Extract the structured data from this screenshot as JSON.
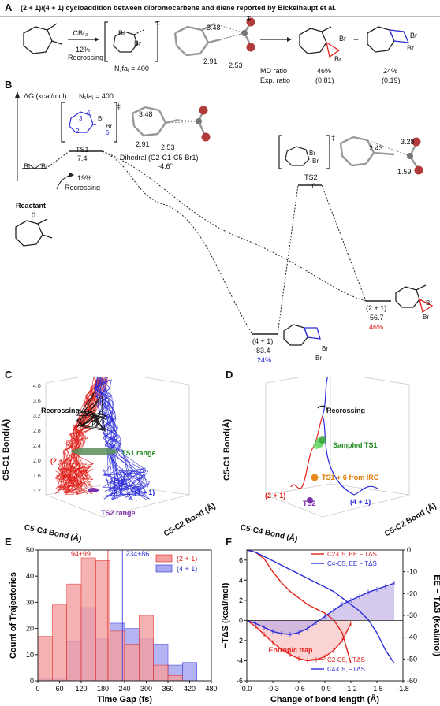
{
  "panel_a": {
    "label": "A",
    "title": "(2 + 1)/(4 + 1) cycloaddition between dibromocarbene  and diene reported  by Bickelhaupt et al.",
    "reagent": ":CBr₂",
    "recross_pct": "12%",
    "recross_label": "Recrossing",
    "nfaj": "N₁faⱼ = 400",
    "dist_348": "3.48",
    "dist_291": "2.91",
    "dist_253": "2.53",
    "md_ratio_label": "MD ratio",
    "exp_ratio_label": "Exp. ratio",
    "md_21": "46%",
    "md_41": "24%",
    "exp_21": "(0.81)",
    "exp_41": "(0.19)",
    "br": "Br",
    "dagger": "‡",
    "plus": "+"
  },
  "panel_b": {
    "label": "B",
    "yaxis": "ΔG (kcal/mol)",
    "nfaj": "N₁faⱼ = 400",
    "ts1_label": "TS1",
    "ts1_val": "7.4",
    "ts1_pct": "19%",
    "ts1_recross": "Recrossing",
    "ts2_label": "TS2",
    "ts2_val": "1.0",
    "reactant_label": "Reactant",
    "reactant_val": "0",
    "p41_label": "(4 + 1)",
    "p41_val": "-83.4",
    "p41_pct": "24%",
    "p21_label": "(2 + 1)",
    "p21_val": "-56.7",
    "p21_pct": "46%",
    "dihedral": "Dihedral (C2-C1-C5-Br1)",
    "dihedral_val": "-4.6°",
    "d348": "3.48",
    "d291": "2.91",
    "d253": "2.53",
    "d328": "3.28",
    "d243": "2.43",
    "d159": "1.59",
    "n1": "1",
    "n2": "2",
    "n3": "3",
    "n4": "4",
    "n5": "5",
    "br": "Br",
    "dagger": "‡"
  },
  "panel_c": {
    "label": "C",
    "zlabel": "C5-C1 Bond(Å)",
    "xlabel": "C5-C4 Bond (Å)",
    "ylabel": "C5-C2 Bond (Å)",
    "recross": "Recrossing",
    "p21": "(2 + 1)",
    "p41": "(4 + 1)",
    "ts1": "TS1 range",
    "ts2": "TS2 range",
    "zticks": [
      "4.0",
      "3.6",
      "3.2",
      "2.8",
      "2.4",
      "2.0",
      "1.6",
      "1.2"
    ]
  },
  "panel_d": {
    "label": "D",
    "zlabel": "C5-C1 Bond(Å)",
    "xlabel": "C5-C4 Bond (Å)",
    "ylabel": "C5-C2 Bond (Å)",
    "recross": "Recrossing",
    "sampled": "Sampled TS1",
    "ts1_irc": "TS1 + 6 from IRC",
    "p21": "(2 + 1)",
    "p41": "(4 + 1)",
    "ts2": "TS2",
    "zticks": [
      "4.0",
      "3.6",
      "3.2",
      "2.8",
      "2.4",
      "2.0",
      "1.6",
      "1.2"
    ]
  },
  "panel_e": {
    "label": "E",
    "ann21": "194±99",
    "ann41": "234±86",
    "colors": {
      "s21": "#f4a0a0",
      "s21_edge": "#e0211b",
      "s41": "#a8a8f0",
      "s41_edge": "#2b2bd9"
    },
    "chart_data": {
      "type": "bar",
      "xlabel": "Time Gap (fs)",
      "ylabel": "Count of Trajectories",
      "xlim": [
        0,
        480
      ],
      "ylim": [
        0,
        50
      ],
      "xticks": [
        0,
        60,
        120,
        180,
        240,
        300,
        360,
        420,
        480
      ],
      "yticks": [
        0,
        10,
        20,
        30,
        40,
        50
      ],
      "series": [
        {
          "name": "(2 + 1)",
          "x": [
            20,
            60,
            100,
            140,
            180,
            220,
            260,
            300,
            340,
            380
          ],
          "values": [
            17,
            29,
            37,
            47,
            46,
            19,
            14,
            25,
            6,
            2
          ]
        },
        {
          "name": "(4 + 1)",
          "x": [
            20,
            60,
            100,
            140,
            180,
            220,
            260,
            300,
            340,
            380,
            420
          ],
          "values": [
            1,
            1,
            15,
            28,
            16,
            22,
            20,
            16,
            14,
            6,
            7
          ]
        }
      ]
    }
  },
  "panel_f": {
    "label": "F",
    "colors": {
      "c2": "#e0211b",
      "c4": "#2b2bd9",
      "fill_c2": "#f7b8b8",
      "fill_c4": "#b9a6e3"
    },
    "trap": "Entropic trap",
    "chart_data": {
      "type": "line",
      "xlabel": "Change of bond length (Å)",
      "ylabel_left": "−TΔS (kcal/mol)",
      "ylabel_right": "EE − TΔS (kcal/mol)",
      "xlim": [
        0,
        -1.8
      ],
      "ylim_left": [
        -6,
        7
      ],
      "ylim_right": [
        -60,
        0
      ],
      "xticks": [
        "0.0",
        "-0.3",
        "-0.6",
        "-0.9",
        "-1.2",
        "-1.5",
        "-1.8"
      ],
      "yticks_left": [
        "6",
        "4",
        "2",
        "0",
        "-2",
        "-4",
        "-6"
      ],
      "yticks_right": [
        "0",
        "-10",
        "-20",
        "-30",
        "-40",
        "-50",
        "-60"
      ],
      "series": [
        {
          "name": "C2-C5, EE − TΔS",
          "axis": "right",
          "x": [
            0,
            -0.1,
            -0.2,
            -0.3,
            -0.4,
            -0.5,
            -0.6,
            -0.7,
            -0.8,
            -0.9,
            -1.0,
            -1.1,
            -1.2
          ],
          "y": [
            0,
            -1,
            -4,
            -10,
            -15,
            -19,
            -22,
            -25,
            -27,
            -29,
            -32,
            -38,
            -52
          ]
        },
        {
          "name": "C4-C5, EE − TΔS",
          "axis": "right",
          "x": [
            0,
            -0.1,
            -0.2,
            -0.3,
            -0.4,
            -0.5,
            -0.6,
            -0.7,
            -0.8,
            -0.9,
            -1.0,
            -1.1,
            -1.2,
            -1.3,
            -1.4,
            -1.5,
            -1.6,
            -1.7
          ],
          "y": [
            0,
            -1,
            -3,
            -5,
            -7,
            -9,
            -11,
            -13,
            -15,
            -17,
            -19,
            -22,
            -25,
            -28,
            -32,
            -38,
            -46,
            -52
          ]
        },
        {
          "name": "C2-C5, −TΔS",
          "axis": "left",
          "x": [
            0,
            -0.1,
            -0.2,
            -0.3,
            -0.4,
            -0.5,
            -0.6,
            -0.7,
            -0.8,
            -0.9,
            -1.0,
            -1.1,
            -1.2
          ],
          "y": [
            0,
            -0.6,
            -1.4,
            -2.2,
            -2.9,
            -3.4,
            -3.8,
            -4.0,
            -3.9,
            -3.6,
            -3.0,
            -2.0,
            -0.3
          ]
        },
        {
          "name": "C4-C5, −TΔS",
          "axis": "left",
          "x": [
            0,
            -0.1,
            -0.2,
            -0.3,
            -0.4,
            -0.5,
            -0.6,
            -0.7,
            -0.8,
            -0.9,
            -1.0,
            -1.1,
            -1.2,
            -1.3,
            -1.4,
            -1.5,
            -1.6,
            -1.7
          ],
          "y": [
            0,
            -0.3,
            -0.7,
            -1.1,
            -1.3,
            -1.4,
            -1.2,
            -0.8,
            -0.2,
            0.4,
            1.0,
            1.6,
            2.0,
            2.4,
            2.8,
            3.1,
            3.4,
            3.7
          ]
        }
      ]
    }
  }
}
